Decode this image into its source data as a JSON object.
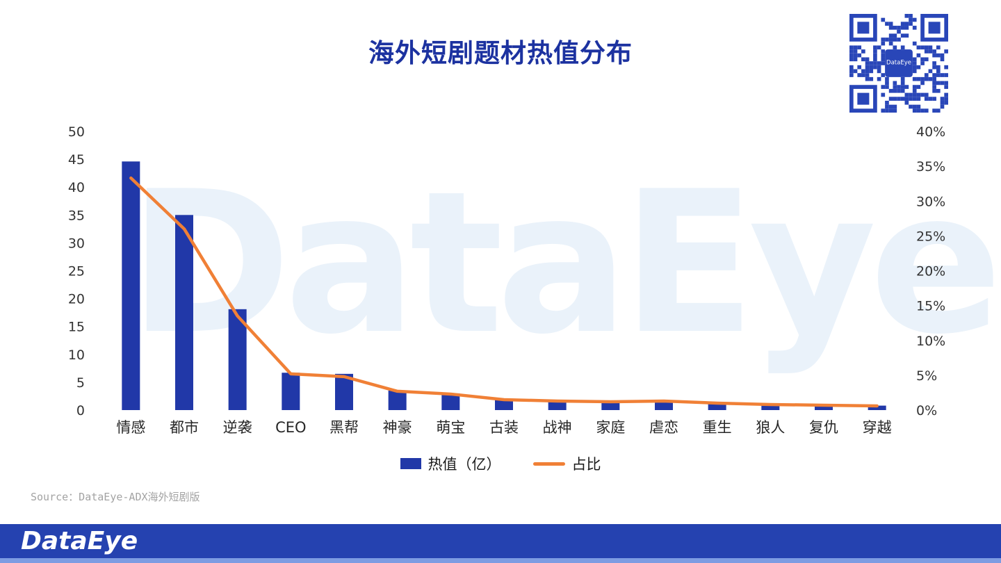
{
  "title": "海外短剧题材热值分布",
  "watermark": "DataEye",
  "source": "Source：DataEye-ADX海外短剧版",
  "footer": {
    "logo_text": "DataEye"
  },
  "qr": {
    "label": "DataEye"
  },
  "legend": {
    "bar_label": "热值（亿）",
    "line_label": "占比"
  },
  "colors": {
    "title": "#1c32a0",
    "bar": "#2138a8",
    "line": "#f08036",
    "watermark": "#eaf2fa",
    "axis_text": "#333333",
    "category_text": "#262626",
    "source_text": "#a3a3a3",
    "footer": "#2542b0",
    "footer_strip": "#7d9ce2",
    "qr": "#2946b8"
  },
  "chart_data": {
    "type": "bar+line",
    "title": "海外短剧题材热值分布",
    "categories": [
      "情感",
      "都市",
      "逆袭",
      "CEO",
      "黑帮",
      "神豪",
      "萌宝",
      "古装",
      "战神",
      "家庭",
      "虐恋",
      "重生",
      "狼人",
      "复仇",
      "穿越"
    ],
    "series": [
      {
        "name": "热值（亿）",
        "type": "bar",
        "axis": "left",
        "values": [
          44.6,
          35.0,
          18.1,
          6.7,
          6.5,
          3.5,
          3.0,
          2.0,
          1.7,
          1.5,
          1.7,
          1.3,
          1.0,
          0.9,
          0.8
        ]
      },
      {
        "name": "占比",
        "type": "line",
        "axis": "right",
        "values": [
          33.3,
          26.0,
          13.5,
          5.2,
          4.8,
          2.7,
          2.3,
          1.5,
          1.3,
          1.2,
          1.3,
          1.0,
          0.8,
          0.7,
          0.6
        ]
      }
    ],
    "left_axis": {
      "min": 0,
      "max": 50,
      "step": 5
    },
    "right_axis": {
      "min": 0,
      "max": 40,
      "step": 5,
      "suffix": "%"
    },
    "grid": false,
    "legend_position": "bottom"
  }
}
